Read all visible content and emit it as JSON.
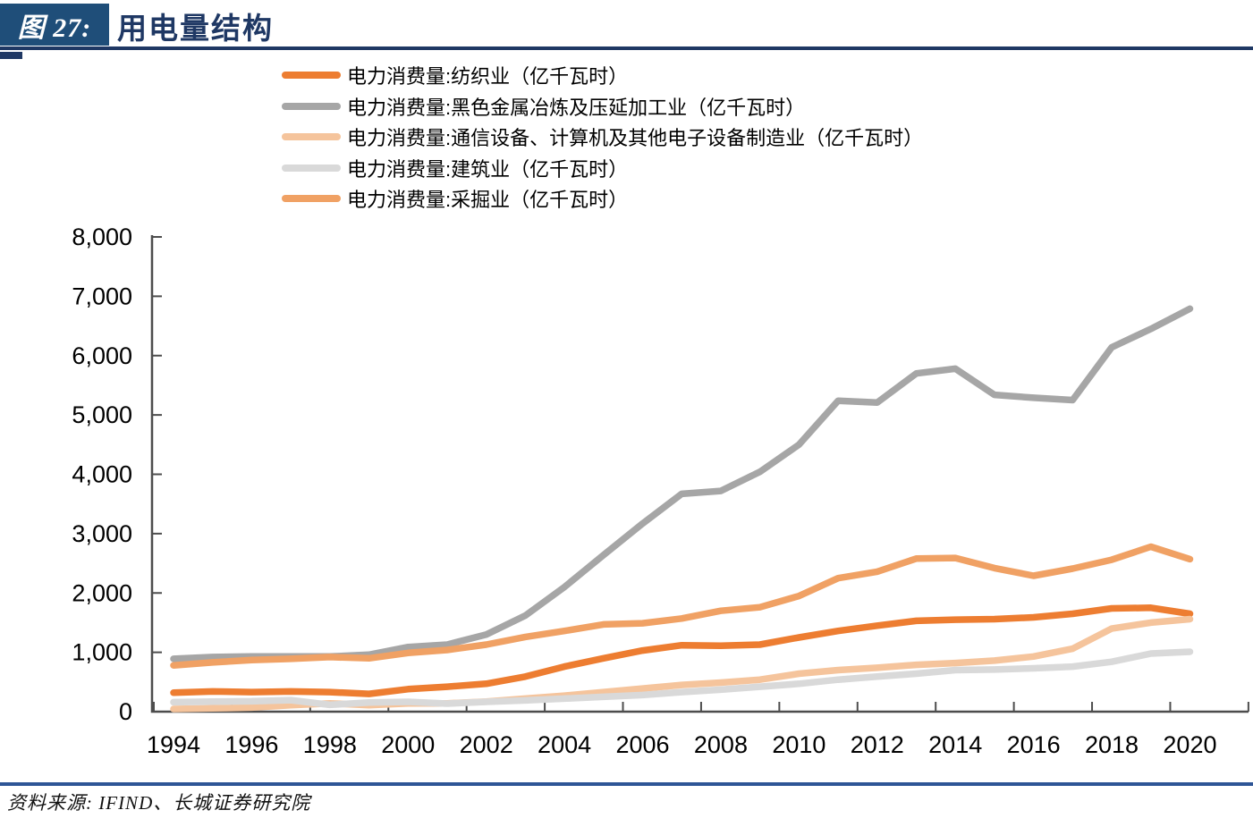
{
  "header": {
    "tag": "图 27:",
    "title": "用电量结构"
  },
  "source": {
    "text": "资料来源: IFIND、长城证券研究院"
  },
  "colors": {
    "tag_bg": "#1F4E79",
    "title_text": "#1F3864",
    "rule_top": "#1F3864",
    "rule_bottom": "#2E5596",
    "axis": "#4D4D4D",
    "tick_label": "#000000"
  },
  "chart_data": {
    "type": "line",
    "title": "用电量结构",
    "xlabel": "",
    "ylabel": "",
    "grid": false,
    "legend_position": "top",
    "ylim": [
      0,
      8000
    ],
    "y_ticks": [
      0,
      1000,
      2000,
      3000,
      4000,
      5000,
      6000,
      7000,
      8000
    ],
    "y_tick_labels": [
      "0",
      "1,000",
      "2,000",
      "3,000",
      "4,000",
      "5,000",
      "6,000",
      "7,000",
      "8,000"
    ],
    "x": [
      1994,
      1995,
      1996,
      1997,
      1998,
      1999,
      2000,
      2001,
      2002,
      2003,
      2004,
      2005,
      2006,
      2007,
      2008,
      2009,
      2010,
      2011,
      2012,
      2013,
      2014,
      2015,
      2016,
      2017,
      2018,
      2019,
      2020
    ],
    "x_tick_labels": [
      "1994",
      "1996",
      "1998",
      "2000",
      "2002",
      "2004",
      "2006",
      "2008",
      "2010",
      "2012",
      "2014",
      "2016",
      "2018",
      "2020"
    ],
    "unit": "亿千瓦时",
    "series": [
      {
        "name": "纺织业",
        "label": "电力消费量:纺织业（亿千瓦时）",
        "color": "#ED7D31",
        "values": [
          320,
          340,
          330,
          340,
          330,
          300,
          380,
          420,
          470,
          590,
          760,
          900,
          1030,
          1120,
          1110,
          1130,
          1250,
          1360,
          1450,
          1530,
          1550,
          1560,
          1590,
          1650,
          1740,
          1750,
          1650
        ]
      },
      {
        "name": "黑色金属冶炼及压延加工业",
        "label": "电力消费量:黑色金属冶炼及压延加工业（亿千瓦时）",
        "color": "#A6A6A6",
        "values": [
          890,
          920,
          930,
          930,
          930,
          960,
          1090,
          1130,
          1300,
          1620,
          2100,
          2640,
          3170,
          3670,
          3720,
          4040,
          4500,
          5240,
          5210,
          5700,
          5780,
          5340,
          5290,
          5250,
          6140,
          6450,
          6790
        ]
      },
      {
        "name": "通信设备、计算机及其他电子设备制造业",
        "label": "电力消费量:通信设备、计算机及其他电子设备制造业（亿千瓦时）",
        "color": "#F5C49C",
        "values": [
          45,
          55,
          70,
          110,
          140,
          110,
          140,
          140,
          170,
          220,
          270,
          330,
          390,
          450,
          490,
          540,
          640,
          700,
          740,
          790,
          820,
          860,
          930,
          1060,
          1400,
          1500,
          1560
        ]
      },
      {
        "name": "建筑业",
        "label": "电力消费量:建筑业（亿千瓦时）",
        "color": "#D9D9D9",
        "values": [
          160,
          170,
          175,
          195,
          115,
          155,
          165,
          135,
          165,
          190,
          220,
          250,
          280,
          330,
          370,
          420,
          470,
          540,
          590,
          640,
          700,
          710,
          730,
          760,
          840,
          980,
          1010
        ]
      },
      {
        "name": "采掘业",
        "label": "电力消费量:采掘业（亿千瓦时）",
        "color": "#F0A164",
        "values": [
          780,
          830,
          870,
          890,
          920,
          900,
          990,
          1040,
          1130,
          1260,
          1360,
          1470,
          1490,
          1570,
          1700,
          1760,
          1950,
          2250,
          2360,
          2580,
          2590,
          2420,
          2290,
          2410,
          2560,
          2780,
          2570
        ]
      }
    ]
  }
}
